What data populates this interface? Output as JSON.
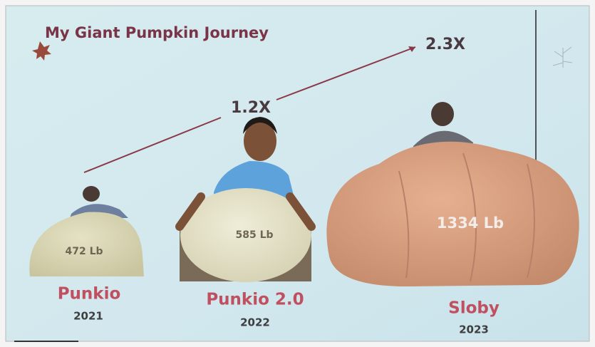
{
  "title": "My Giant Pumpkin Journey",
  "growth_labels": [
    "1.2X",
    "2.3X"
  ],
  "pumpkins": [
    {
      "weight": "472 Lb",
      "name": "Punkio",
      "year": "2021"
    },
    {
      "weight": "585 Lb",
      "name": "Punkio 2.0",
      "year": "2022"
    },
    {
      "weight": "1334 Lb",
      "name": "Sloby",
      "year": "2023"
    }
  ]
}
